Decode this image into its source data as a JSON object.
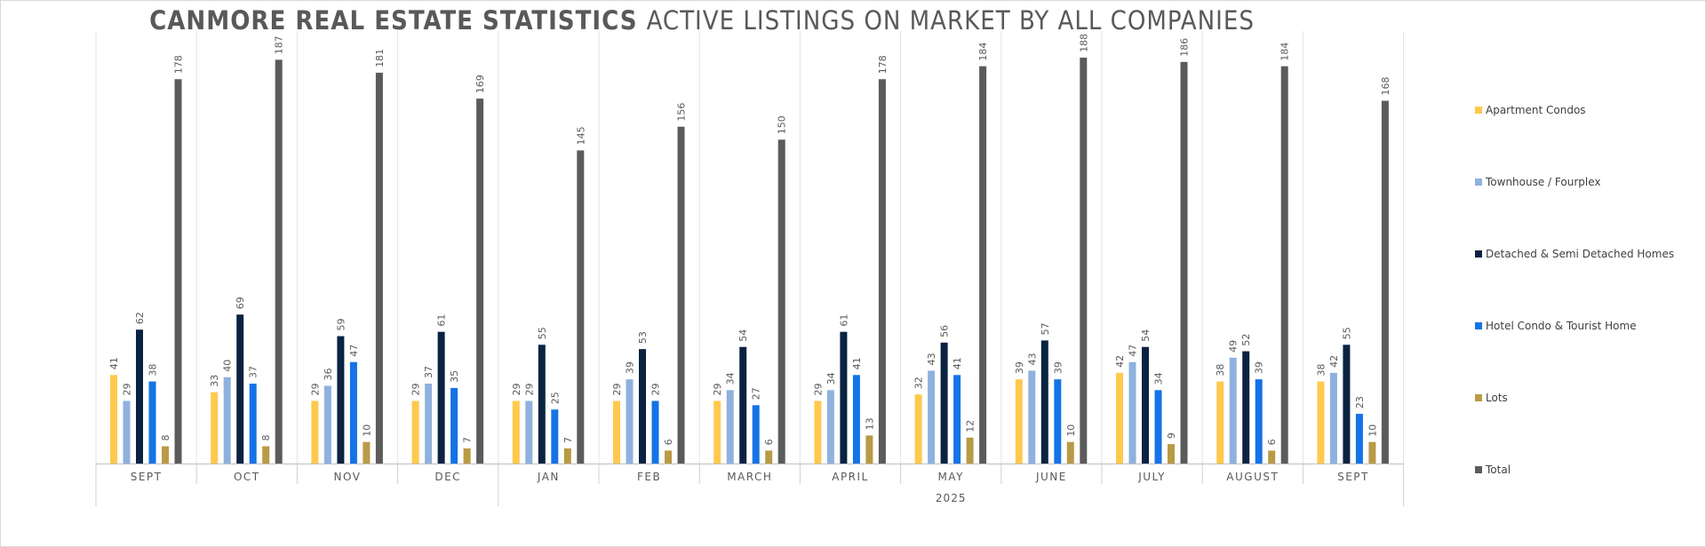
{
  "chart_data": {
    "type": "bar",
    "title_bold": "CANMORE REAL ESTATE STATISTICS",
    "title_rest": "ACTIVE LISTINGS ON MARKET BY ALL COMPANIES",
    "categories": [
      "SEPT",
      "OCT",
      "NOV",
      "DEC",
      "JAN",
      "FEB",
      "MARCH",
      "APRIL",
      "MAY",
      "JUNE",
      "JULY",
      "AUGUST",
      "SEPT"
    ],
    "year_label": "2025",
    "series": [
      {
        "name": "Apartment Condos",
        "color": "#FFC94D",
        "values": [
          41,
          33,
          29,
          29,
          29,
          29,
          29,
          29,
          32,
          39,
          42,
          38,
          38
        ]
      },
      {
        "name": "Townhouse / Fourplex",
        "color": "#8FB1DE",
        "values": [
          29,
          40,
          36,
          37,
          29,
          39,
          34,
          34,
          43,
          43,
          47,
          49,
          42
        ]
      },
      {
        "name": "Detached & Semi Detached Homes",
        "color": "#0B2341",
        "values": [
          62,
          69,
          59,
          61,
          55,
          53,
          54,
          61,
          56,
          57,
          54,
          52,
          55
        ]
      },
      {
        "name": "Hotel Condo & Tourist Home",
        "color": "#1473E6",
        "values": [
          38,
          37,
          47,
          35,
          25,
          29,
          27,
          41,
          41,
          39,
          34,
          39,
          23
        ]
      },
      {
        "name": "Lots",
        "color": "#B99A45",
        "values": [
          8,
          8,
          10,
          7,
          7,
          6,
          6,
          13,
          12,
          10,
          9,
          6,
          10
        ]
      },
      {
        "name": "Total",
        "color": "#5B5B5B",
        "values": [
          178,
          187,
          181,
          169,
          145,
          156,
          150,
          178,
          184,
          188,
          186,
          184,
          168
        ]
      }
    ],
    "ylim": [
      0,
      190
    ],
    "grid": "vertical",
    "legend_position": "right"
  }
}
